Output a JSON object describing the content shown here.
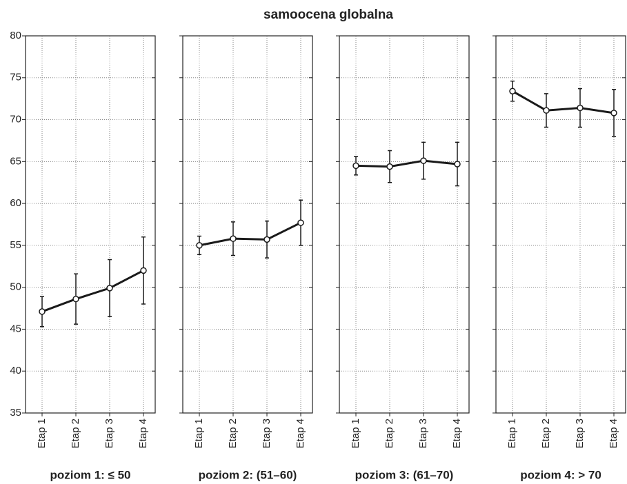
{
  "title": "samoocena globalna",
  "chart_data": [
    {
      "type": "line",
      "xlabel": "poziom 1: ≤ 50",
      "categories": [
        "Etap 1",
        "Etap 2",
        "Etap 3",
        "Etap 4"
      ],
      "series": [
        {
          "color": "#1a1a1a",
          "values": [
            47.1,
            48.6,
            49.9,
            52.0
          ],
          "errors": [
            1.8,
            3.0,
            3.4,
            4.0
          ]
        }
      ],
      "ylim": [
        35,
        80
      ],
      "yticks": [
        35,
        40,
        45,
        50,
        55,
        60,
        65,
        70,
        75,
        80
      ],
      "grid": true,
      "show_yticklabels": true
    },
    {
      "type": "line",
      "xlabel": "poziom 2: (51–60)",
      "categories": [
        "Etap 1",
        "Etap 2",
        "Etap 3",
        "Etap 4"
      ],
      "series": [
        {
          "color": "#1a1a1a",
          "values": [
            55.0,
            55.8,
            55.7,
            57.7
          ],
          "errors": [
            1.1,
            2.0,
            2.2,
            2.7
          ]
        }
      ],
      "ylim": [
        35,
        80
      ],
      "yticks": [
        35,
        40,
        45,
        50,
        55,
        60,
        65,
        70,
        75,
        80
      ],
      "grid": true,
      "show_yticklabels": false
    },
    {
      "type": "line",
      "xlabel": "poziom 3: (61–70)",
      "categories": [
        "Etap 1",
        "Etap 2",
        "Etap 3",
        "Etap 4"
      ],
      "series": [
        {
          "color": "#1a1a1a",
          "values": [
            64.5,
            64.4,
            65.1,
            64.7
          ],
          "errors": [
            1.1,
            1.9,
            2.2,
            2.6
          ]
        }
      ],
      "ylim": [
        35,
        80
      ],
      "yticks": [
        35,
        40,
        45,
        50,
        55,
        60,
        65,
        70,
        75,
        80
      ],
      "grid": true,
      "show_yticklabels": false
    },
    {
      "type": "line",
      "xlabel": "poziom 4: > 70",
      "categories": [
        "Etap 1",
        "Etap 2",
        "Etap 3",
        "Etap 4"
      ],
      "series": [
        {
          "color": "#1a1a1a",
          "values": [
            73.4,
            71.1,
            71.4,
            70.8
          ],
          "errors": [
            1.2,
            2.0,
            2.3,
            2.8
          ]
        }
      ],
      "ylim": [
        35,
        80
      ],
      "yticks": [
        35,
        40,
        45,
        50,
        55,
        60,
        65,
        70,
        75,
        80
      ],
      "grid": true,
      "show_yticklabels": false
    }
  ]
}
